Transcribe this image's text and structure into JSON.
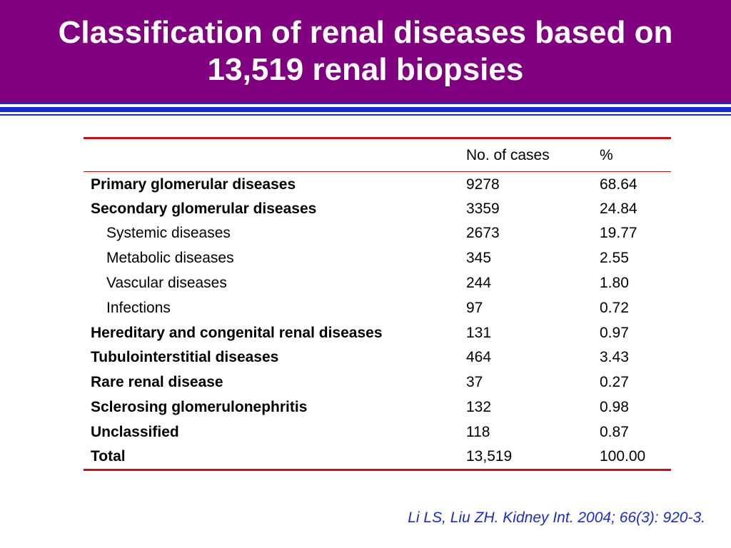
{
  "slide": {
    "title": "Classification of renal diseases based on 13,519 renal biopsies",
    "citation": "Li LS, Liu ZH. Kidney Int. 2004; 66(3): 920-3."
  },
  "colors": {
    "title_background": "#800080",
    "title_text": "#ffffff",
    "rule_blue": "#1a2bd6",
    "table_rule_red": "#cc1111",
    "citation_text": "#1a2bd6"
  },
  "table": {
    "headers": [
      "",
      "No. of cases",
      "%"
    ],
    "rows": [
      {
        "label": "Primary glomerular diseases",
        "cases": "9278",
        "percent": "68.64",
        "bold": true,
        "indent": false
      },
      {
        "label": "Secondary glomerular diseases",
        "cases": "3359",
        "percent": "24.84",
        "bold": true,
        "indent": false
      },
      {
        "label": "Systemic diseases",
        "cases": "2673",
        "percent": "19.77",
        "bold": false,
        "indent": true
      },
      {
        "label": "Metabolic diseases",
        "cases": "345",
        "percent": "2.55",
        "bold": false,
        "indent": true
      },
      {
        "label": "Vascular diseases",
        "cases": "244",
        "percent": "1.80",
        "bold": false,
        "indent": true
      },
      {
        "label": "Infections",
        "cases": "97",
        "percent": "0.72",
        "bold": false,
        "indent": true
      },
      {
        "label": "Hereditary and congenital renal diseases",
        "cases": "131",
        "percent": "0.97",
        "bold": true,
        "indent": false
      },
      {
        "label": "Tubulointerstitial diseases",
        "cases": "464",
        "percent": "3.43",
        "bold": true,
        "indent": false
      },
      {
        "label": "Rare renal disease",
        "cases": "37",
        "percent": "0.27",
        "bold": true,
        "indent": false
      },
      {
        "label": "Sclerosing glomerulonephritis",
        "cases": "132",
        "percent": "0.98",
        "bold": true,
        "indent": false
      },
      {
        "label": "Unclassified",
        "cases": "118",
        "percent": "0.87",
        "bold": true,
        "indent": false
      },
      {
        "label": "Total",
        "cases": "13,519",
        "percent": "100.00",
        "bold": true,
        "indent": false
      }
    ]
  }
}
